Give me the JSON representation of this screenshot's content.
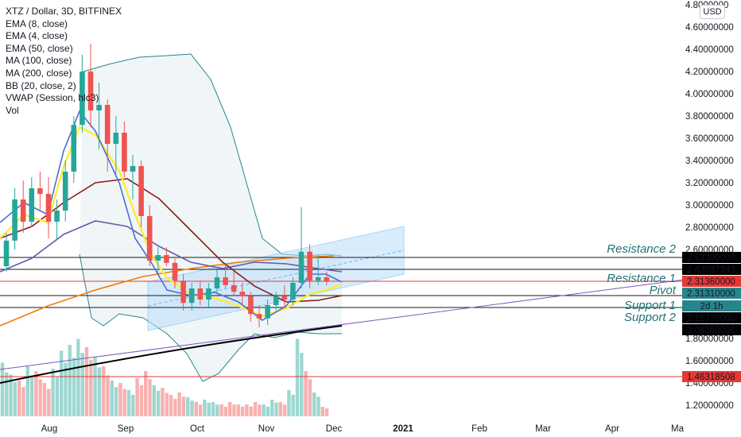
{
  "header": {
    "title": "XTZ / Dollar, 3D, BITFINEX",
    "indicators": [
      "EMA (8, close)",
      "EMA (4, close)",
      "EMA (50, close)",
      "MA (100, close)",
      "MA (200, close)",
      "BB (20, close, 2)",
      "VWAP (Session, hlc3)",
      "Vol"
    ],
    "currency_button": "USD"
  },
  "chart_data": {
    "type": "candlestick",
    "symbol": "XTZ / Dollar",
    "interval": "3D",
    "exchange": "BITFINEX",
    "x_tick_labels": [
      "Aug",
      "Sep",
      "Oct",
      "Nov",
      "Dec",
      "2021",
      "Feb",
      "Mar",
      "Apr",
      "Ma"
    ],
    "y_tick_labels": [
      "1.20000000",
      "1.40000000",
      "1.60000000",
      "1.80000000",
      "2.00000000",
      "2.20000000",
      "2.40000000",
      "2.60000000",
      "2.80000000",
      "3.00000000",
      "3.20000000",
      "3.40000000",
      "3.60000000",
      "3.80000000",
      "4.00000000",
      "4.20000000",
      "4.40000000",
      "4.60000000",
      "4.8000000"
    ],
    "ylim": [
      1.12,
      4.82
    ],
    "candles": [
      {
        "o": 2.45,
        "h": 2.75,
        "l": 2.4,
        "c": 2.68
      },
      {
        "o": 2.68,
        "h": 3.15,
        "l": 2.6,
        "c": 3.05
      },
      {
        "o": 3.05,
        "h": 3.22,
        "l": 2.75,
        "c": 2.85
      },
      {
        "o": 2.85,
        "h": 3.25,
        "l": 2.8,
        "c": 3.15
      },
      {
        "o": 3.15,
        "h": 3.3,
        "l": 2.95,
        "c": 3.1
      },
      {
        "o": 3.1,
        "h": 3.25,
        "l": 2.7,
        "c": 2.85
      },
      {
        "o": 2.85,
        "h": 3.05,
        "l": 2.68,
        "c": 2.95
      },
      {
        "o": 2.95,
        "h": 3.4,
        "l": 2.85,
        "c": 3.3
      },
      {
        "o": 3.3,
        "h": 3.8,
        "l": 3.2,
        "c": 3.72
      },
      {
        "o": 3.72,
        "h": 4.35,
        "l": 3.65,
        "c": 4.2
      },
      {
        "o": 4.2,
        "h": 4.45,
        "l": 3.7,
        "c": 3.85
      },
      {
        "o": 3.85,
        "h": 4.1,
        "l": 3.5,
        "c": 3.9
      },
      {
        "o": 3.9,
        "h": 3.95,
        "l": 3.3,
        "c": 3.55
      },
      {
        "o": 3.55,
        "h": 3.8,
        "l": 3.25,
        "c": 3.65
      },
      {
        "o": 3.65,
        "h": 3.75,
        "l": 3.25,
        "c": 3.3
      },
      {
        "o": 3.3,
        "h": 3.45,
        "l": 3.05,
        "c": 3.35
      },
      {
        "o": 3.35,
        "h": 3.4,
        "l": 2.8,
        "c": 2.9
      },
      {
        "o": 2.9,
        "h": 3.0,
        "l": 2.45,
        "c": 2.5
      },
      {
        "o": 2.5,
        "h": 2.62,
        "l": 2.38,
        "c": 2.55
      },
      {
        "o": 2.55,
        "h": 2.62,
        "l": 2.45,
        "c": 2.48
      },
      {
        "o": 2.48,
        "h": 2.52,
        "l": 2.25,
        "c": 2.32
      },
      {
        "o": 2.32,
        "h": 2.38,
        "l": 2.05,
        "c": 2.12
      },
      {
        "o": 2.12,
        "h": 2.3,
        "l": 2.05,
        "c": 2.25
      },
      {
        "o": 2.25,
        "h": 2.32,
        "l": 2.1,
        "c": 2.15
      },
      {
        "o": 2.15,
        "h": 2.3,
        "l": 2.08,
        "c": 2.25
      },
      {
        "o": 2.25,
        "h": 2.42,
        "l": 2.2,
        "c": 2.35
      },
      {
        "o": 2.35,
        "h": 2.48,
        "l": 2.25,
        "c": 2.28
      },
      {
        "o": 2.28,
        "h": 2.4,
        "l": 2.18,
        "c": 2.22
      },
      {
        "o": 2.22,
        "h": 2.3,
        "l": 2.1,
        "c": 2.18
      },
      {
        "o": 2.18,
        "h": 2.22,
        "l": 1.95,
        "c": 2.02
      },
      {
        "o": 2.02,
        "h": 2.1,
        "l": 1.9,
        "c": 1.98
      },
      {
        "o": 1.98,
        "h": 2.15,
        "l": 1.92,
        "c": 2.1
      },
      {
        "o": 2.1,
        "h": 2.22,
        "l": 2.05,
        "c": 2.18
      },
      {
        "o": 2.18,
        "h": 2.28,
        "l": 2.08,
        "c": 2.15
      },
      {
        "o": 2.15,
        "h": 2.35,
        "l": 2.1,
        "c": 2.3
      },
      {
        "o": 2.3,
        "h": 2.98,
        "l": 2.25,
        "c": 2.58
      },
      {
        "o": 2.58,
        "h": 2.65,
        "l": 2.25,
        "c": 2.32
      },
      {
        "o": 2.32,
        "h": 2.55,
        "l": 2.28,
        "c": 2.35
      },
      {
        "o": 2.35,
        "h": 2.4,
        "l": 2.28,
        "c": 2.31
      }
    ],
    "volume_scale_note": "relative",
    "horizontal_levels": [
      {
        "label": "Resistance 2",
        "price_tag": "2.53300000"
      },
      {
        "label": "",
        "price_tag": "2.43037343"
      },
      {
        "label": "Resistance 1",
        "price_tag": "2.31360000"
      },
      {
        "label": "Pivot",
        "price_tag": "2.31310000"
      },
      {
        "label": "",
        "price_tag": "2d 1h"
      },
      {
        "label": "Support 1",
        "price_tag": "2.18720000"
      },
      {
        "label": "Support 2",
        "price_tag": "2.08360000"
      },
      {
        "label": "",
        "price_tag": "1.46318508"
      }
    ],
    "colors": {
      "up": "#26a69a",
      "down": "#ef5350",
      "ema8": "#ffeb3b",
      "ema4": "#4a6fd1",
      "ema50": "#8b1a1a",
      "ma100": "#6a5aa8",
      "ma200": "#f57c00",
      "bb": "#26868c",
      "channel": "#bbdefb",
      "support_line": "#000000",
      "level_line": "#000000",
      "red_line": "#e53935"
    }
  }
}
